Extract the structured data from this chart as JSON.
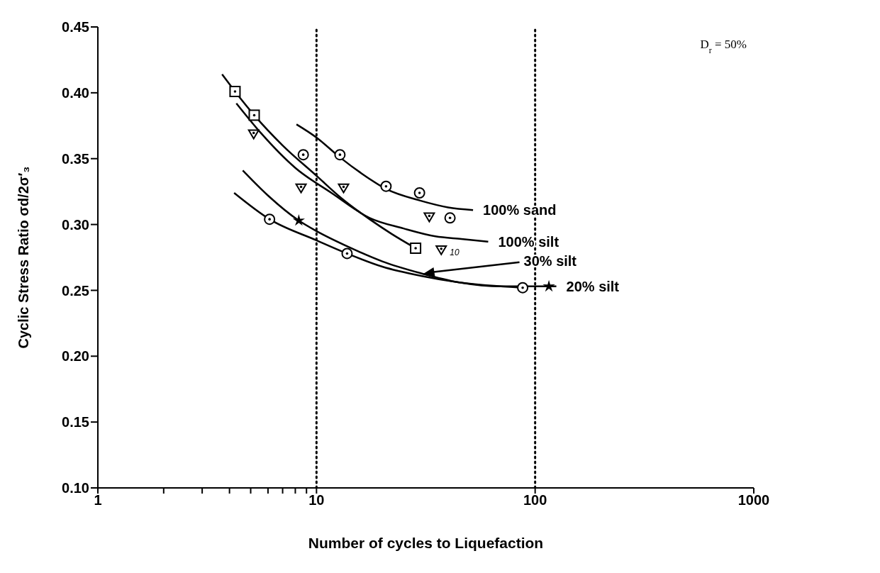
{
  "chart_data": {
    "type": "line",
    "xlabel": "Number of cycles to Liquefaction",
    "ylabel": "Cyclic Stress Ratio σd/2σ′₃",
    "annotations": [
      "D$_{r}$ = 50%",
      {
        "text": "10",
        "x": 37.2,
        "y": 0.281
      }
    ],
    "log": "x",
    "xlim": [
      1,
      1000
    ],
    "ylim": [
      0.1,
      0.45
    ],
    "xticks": [
      1,
      {
        "value": 2,
        "label": null
      },
      {
        "value": 3,
        "label": null
      },
      {
        "value": 4,
        "label": null
      },
      {
        "value": 5,
        "label": null
      },
      {
        "value": 6,
        "label": null
      },
      {
        "value": 7,
        "label": null
      },
      {
        "value": 8,
        "label": null
      },
      {
        "value": 9,
        "label": null
      },
      10,
      100,
      1000
    ],
    "yticks": [
      {
        "value": 0.1,
        "label": "0.10"
      },
      0.15,
      {
        "value": 0.2,
        "label": "0.20"
      },
      0.25,
      {
        "value": 0.3,
        "label": "0.30"
      },
      0.35,
      {
        "value": 0.4,
        "label": "0.40"
      },
      0.45
    ],
    "ref_lines": [
      {
        "axis": "x",
        "value": 10,
        "line_style": "dotted",
        "color": "#000000"
      },
      {
        "axis": "x",
        "value": 100,
        "line_style": "dotted",
        "color": "#000000"
      }
    ],
    "series": [
      {
        "name": "100% sand",
        "color": "#000000",
        "x": [
          8.1,
          10,
          12.8,
          16,
          20.8,
          30,
          40,
          52
        ],
        "values": [
          0.376,
          0.366,
          0.351,
          0.339,
          0.327,
          0.318,
          0.313,
          0.311
        ]
      },
      {
        "name": "100% silt",
        "color": "#000000",
        "x": [
          4.3,
          5.6,
          8,
          11.7,
          17.5,
          25,
          35,
          46,
          61
        ],
        "values": [
          0.392,
          0.369,
          0.343,
          0.324,
          0.305,
          0.297,
          0.291,
          0.289,
          0.287
        ]
      },
      {
        "name": "30% silt",
        "color": "#000000",
        "x": [
          4.2,
          6.1,
          10,
          13.8,
          20,
          30,
          45,
          88
        ],
        "values": [
          0.324,
          0.304,
          0.288,
          0.278,
          0.268,
          0.261,
          0.256,
          0.252
        ]
      },
      {
        "name": "20% silt",
        "color": "#000000",
        "x": [
          4.6,
          6,
          8.3,
          10,
          14,
          20,
          30,
          45,
          70,
          115,
          125
        ],
        "values": [
          0.341,
          0.322,
          0.303,
          0.295,
          0.283,
          0.272,
          0.263,
          0.256,
          0.253,
          0.253,
          0.253
        ]
      },
      {
        "color": "#000000",
        "x": [
          3.7,
          4.24,
          5.19,
          7,
          10,
          13,
          17.5,
          22,
          28.4
        ],
        "values": [
          0.414,
          0.401,
          0.383,
          0.36,
          0.337,
          0.32,
          0.304,
          0.293,
          0.282
        ]
      },
      {
        "type": "scatter",
        "marker": "square",
        "color": "#000000",
        "x": [
          4.24,
          5.19,
          28.4
        ],
        "values": [
          0.401,
          0.383,
          0.282
        ]
      },
      {
        "type": "scatter",
        "marker": "triangle",
        "color": "#000000",
        "x": [
          5.16,
          8.5,
          13.3,
          32.8,
          37.2
        ],
        "values": [
          0.369,
          0.328,
          0.328,
          0.306,
          0.281
        ]
      },
      {
        "type": "scatter",
        "marker": "circle",
        "color": "#000000",
        "x": [
          8.7,
          12.8,
          20.8,
          29.6,
          40.8,
          6.1,
          13.8,
          87.7
        ],
        "values": [
          0.353,
          0.353,
          0.329,
          0.324,
          0.305,
          0.304,
          0.278,
          0.252
        ]
      },
      {
        "type": "scatter",
        "marker": "star",
        "color": "#000000",
        "x": [
          8.3,
          115.6
        ],
        "values": [
          0.303,
          0.253
        ]
      }
    ]
  }
}
